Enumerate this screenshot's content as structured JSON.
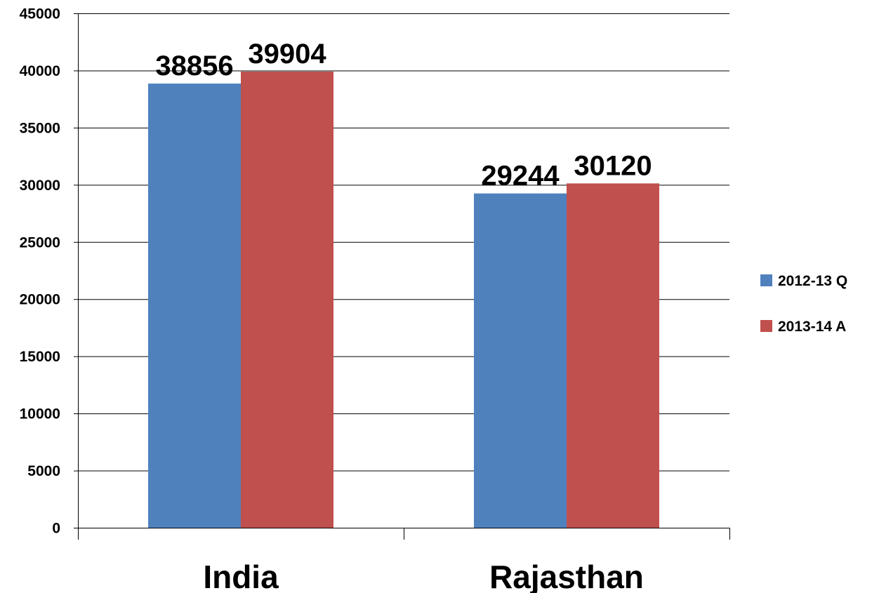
{
  "chart_data": {
    "type": "bar",
    "title": "",
    "xlabel": "",
    "ylabel": "",
    "categories": [
      "India",
      "Rajasthan"
    ],
    "series": [
      {
        "name": "2012-13 Q",
        "color": "#4f81bd",
        "values": [
          38856,
          29244
        ]
      },
      {
        "name": "2013-14 A",
        "color": "#c0504d",
        "values": [
          39904,
          30120
        ]
      }
    ],
    "ylim": [
      0,
      45000
    ],
    "yticks": [
      "0",
      "5000",
      "10000",
      "15000",
      "20000",
      "25000",
      "30000",
      "35000",
      "40000",
      "45000"
    ],
    "data_labels": [
      [
        "38856",
        "29244"
      ],
      [
        "39904",
        "30120"
      ]
    ],
    "grid": true,
    "legend_position": "right"
  }
}
